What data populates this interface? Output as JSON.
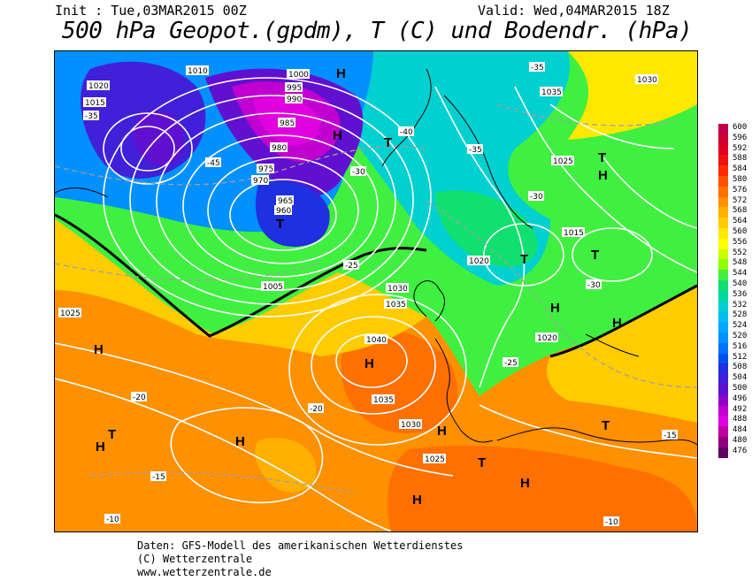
{
  "header": {
    "init": "Init : Tue,03MAR2015 00Z",
    "valid": "Valid: Wed,04MAR2015 18Z",
    "title": "500 hPa Geopot.(gpdm), T (C) und Bodendr. (hPa)"
  },
  "legend": {
    "values": [
      "600",
      "596",
      "592",
      "588",
      "584",
      "580",
      "576",
      "572",
      "568",
      "564",
      "560",
      "556",
      "552",
      "548",
      "544",
      "540",
      "536",
      "532",
      "528",
      "524",
      "520",
      "516",
      "512",
      "508",
      "504",
      "500",
      "496",
      "492",
      "488",
      "484",
      "480",
      "476"
    ],
    "colors": [
      "#c0004a",
      "#d00030",
      "#e00020",
      "#f01010",
      "#ff2a00",
      "#ff5000",
      "#ff7000",
      "#ff9000",
      "#ffb000",
      "#ffcc00",
      "#ffe800",
      "#ffff00",
      "#c8ff00",
      "#90ff00",
      "#40f040",
      "#10e070",
      "#00d8a0",
      "#00d0d0",
      "#00c0f0",
      "#00a8ff",
      "#0090ff",
      "#0070ff",
      "#0050f0",
      "#2030e0",
      "#4020d8",
      "#6010d0",
      "#9000c8",
      "#c000d0",
      "#e000e0",
      "#c000a0",
      "#90007a",
      "#600060"
    ]
  },
  "map": {
    "isobar_labels": [
      "1010",
      "1020",
      "1015",
      "1000",
      "995",
      "990",
      "985",
      "980",
      "975",
      "970",
      "965",
      "960",
      "1005",
      "1025",
      "1030",
      "1035",
      "1040",
      "1035",
      "1030",
      "1025",
      "1020",
      "1015",
      "1020",
      "1025",
      "1030",
      "1035"
    ],
    "temperature_labels": [
      "-35",
      "-40",
      "-45",
      "-30",
      "-25",
      "-20",
      "-15",
      "-10",
      "-35",
      "-30",
      "-25",
      "-20",
      "-15",
      "-10",
      "-35",
      "-30"
    ],
    "pressure_centers": [
      {
        "label": "H",
        "kind": "high"
      },
      {
        "label": "T",
        "kind": "low"
      }
    ]
  },
  "footer": {
    "line1": "Daten: GFS-Modell des amerikanischen Wetterdienstes",
    "line2": "(C) Wetterzentrale",
    "line3": "www.wetterzentrale.de"
  }
}
